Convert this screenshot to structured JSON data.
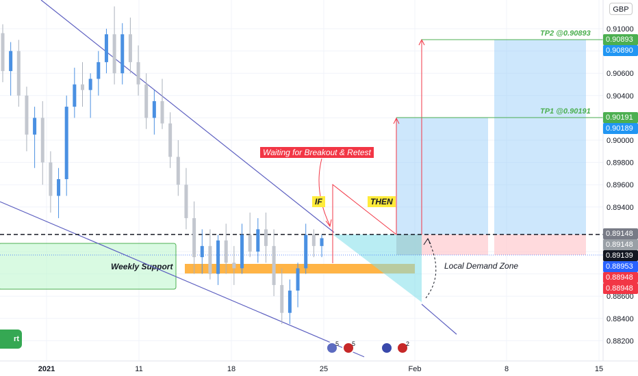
{
  "chart_data": {
    "type": "candlestick",
    "currency_label": "GBP",
    "x_ticks": [
      "2021",
      "11",
      "18",
      "25",
      "Feb",
      "8",
      "15"
    ],
    "y_ticks": [
      "0.91000",
      "0.90800",
      "0.90600",
      "0.90400",
      "0.90200",
      "0.90000",
      "0.89800",
      "0.89600",
      "0.89400",
      "0.89000",
      "0.88800",
      "0.88600",
      "0.88400",
      "0.88200"
    ],
    "price_tags": [
      {
        "label": "0.90893",
        "color": "#4caf50"
      },
      {
        "label": "0.90890",
        "color": "#2196f3"
      },
      {
        "label": "0.90191",
        "color": "#4caf50"
      },
      {
        "label": "0.90189",
        "color": "#2196f3"
      },
      {
        "label": "0.89148",
        "color": "#787b86"
      },
      {
        "label": "0.89148",
        "color": "#9aa0a6"
      },
      {
        "label": "0.89139",
        "color": "#131722"
      },
      {
        "label": "0.88953",
        "color": "#2962ff"
      },
      {
        "label": "0.88948",
        "color": "#f23645"
      },
      {
        "label": "0.88948",
        "color": "#f23645"
      }
    ],
    "annotations": {
      "tp2": "TP2 @0.90893",
      "tp1": "TP1 @0.90191",
      "waiting": "Waiting for Breakout & Retest",
      "if_label": "IF",
      "then_label": "THEN",
      "weekly_support": "Weekly Support",
      "local_demand": "Local Demand Zone"
    },
    "event_badges": [
      "5",
      "5",
      "2"
    ],
    "candles_ohlc_approx": [
      [
        0.9096,
        0.9104,
        0.9052,
        0.9062
      ],
      [
        0.9062,
        0.9088,
        0.904,
        0.908
      ],
      [
        0.908,
        0.909,
        0.903,
        0.904
      ],
      [
        0.904,
        0.9048,
        0.899,
        0.9005
      ],
      [
        0.9005,
        0.903,
        0.8975,
        0.902
      ],
      [
        0.902,
        0.9035,
        0.896,
        0.898
      ],
      [
        0.898,
        0.899,
        0.8935,
        0.895
      ],
      [
        0.895,
        0.8975,
        0.893,
        0.8965
      ],
      [
        0.8965,
        0.904,
        0.895,
        0.903
      ],
      [
        0.903,
        0.9065,
        0.902,
        0.905
      ],
      [
        0.905,
        0.907,
        0.903,
        0.9045
      ],
      [
        0.9045,
        0.906,
        0.902,
        0.9055
      ],
      [
        0.9055,
        0.908,
        0.904,
        0.907
      ],
      [
        0.907,
        0.91,
        0.906,
        0.9095
      ],
      [
        0.9095,
        0.912,
        0.905,
        0.906
      ],
      [
        0.906,
        0.9105,
        0.905,
        0.9095
      ],
      [
        0.9095,
        0.911,
        0.906,
        0.907
      ],
      [
        0.907,
        0.9085,
        0.904,
        0.905
      ],
      [
        0.905,
        0.906,
        0.901,
        0.902
      ],
      [
        0.902,
        0.9045,
        0.9005,
        0.9035
      ],
      [
        0.9035,
        0.9055,
        0.901,
        0.9015
      ],
      [
        0.9015,
        0.9025,
        0.8975,
        0.8985
      ],
      [
        0.8985,
        0.9,
        0.895,
        0.896
      ],
      [
        0.896,
        0.8975,
        0.892,
        0.893
      ],
      [
        0.893,
        0.8945,
        0.888,
        0.8895
      ],
      [
        0.8895,
        0.892,
        0.888,
        0.8905
      ],
      [
        0.8905,
        0.892,
        0.8875,
        0.888
      ],
      [
        0.888,
        0.8915,
        0.887,
        0.891
      ],
      [
        0.891,
        0.8925,
        0.888,
        0.889
      ],
      [
        0.889,
        0.8905,
        0.887,
        0.8885
      ],
      [
        0.8885,
        0.8925,
        0.888,
        0.8915
      ],
      [
        0.8915,
        0.8935,
        0.8895,
        0.89
      ],
      [
        0.89,
        0.893,
        0.889,
        0.892
      ],
      [
        0.892,
        0.8935,
        0.889,
        0.8905
      ],
      [
        0.8905,
        0.892,
        0.886,
        0.887
      ],
      [
        0.887,
        0.8885,
        0.8835,
        0.8845
      ],
      [
        0.8845,
        0.8875,
        0.8835,
        0.8865
      ],
      [
        0.8865,
        0.889,
        0.885,
        0.8885
      ],
      [
        0.8885,
        0.8925,
        0.888,
        0.8915
      ],
      [
        0.8915,
        0.892,
        0.8895,
        0.8905
      ],
      [
        0.8905,
        0.8915,
        0.8895,
        0.8912
      ]
    ]
  }
}
